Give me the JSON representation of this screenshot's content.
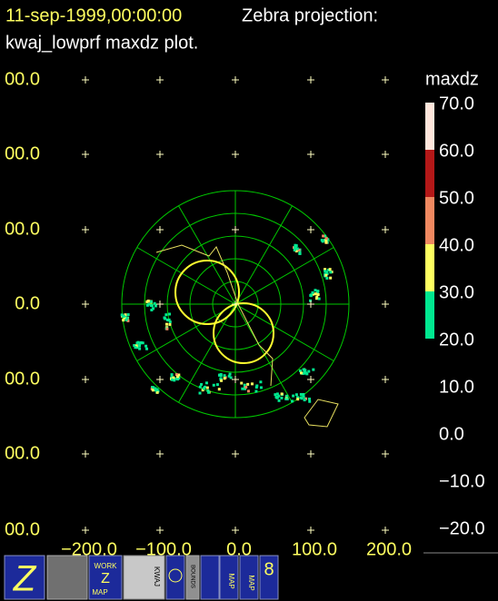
{
  "header": {
    "timestamp": "11-sep-1999,00:00:00",
    "title": "Zebra projection:",
    "subtitle": "kwaj_lowprf maxdz plot."
  },
  "y_axis_labels": [
    "00.0",
    "00.0",
    "00.0",
    "0.0",
    "00.0",
    "00.0",
    "00.0"
  ],
  "x_axis_labels": [
    "−200.0",
    "−100.0",
    "0.0",
    "100.0",
    "200.0"
  ],
  "legend": {
    "title": "maxdz",
    "labels": [
      "70.0",
      "60.0",
      "50.0",
      "40.0",
      "30.0",
      "20.0",
      "10.0",
      "0.0",
      "−10.0",
      "−20.0"
    ]
  },
  "toolbar": {
    "work": "WORK",
    "z": "Z",
    "map": "MAP",
    "station": "KWAJ",
    "bounds": "BOUNDS",
    "map1": "MAP",
    "map2": "MAP"
  }
}
